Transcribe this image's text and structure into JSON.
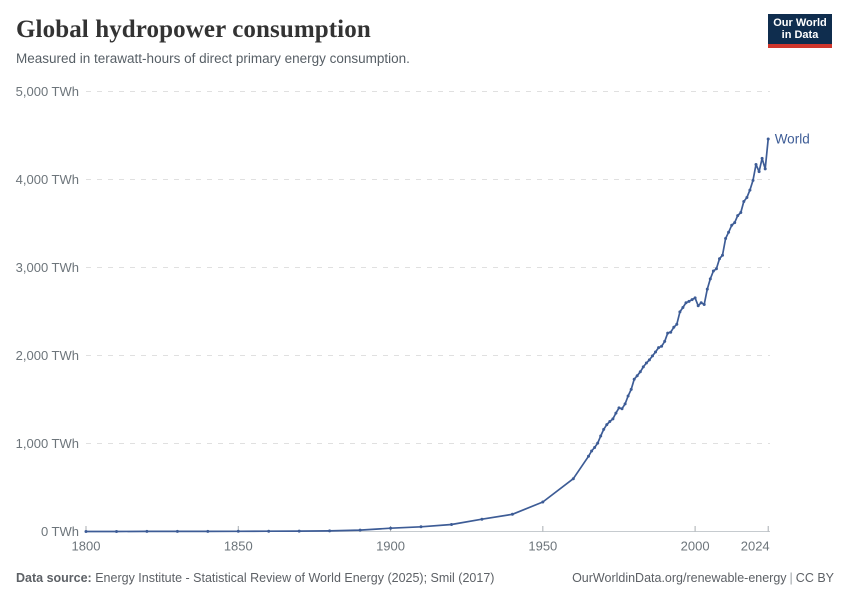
{
  "header": {
    "title": "Global hydropower consumption",
    "subtitle": "Measured in terawatt-hours of direct primary energy consumption."
  },
  "logo": {
    "line1": "Our World",
    "line2": "in Data",
    "bg_color": "#0f2d4e",
    "bar_color": "#d0362c"
  },
  "footer": {
    "source_label": "Data source:",
    "source_text": " Energy Institute - Statistical Review of World Energy (2025); Smil (2017)",
    "url_text": "OurWorldinData.org/renewable-energy",
    "separator": "|",
    "license_text": "CC BY"
  },
  "chart_data": {
    "type": "line",
    "title": "Global hydropower consumption",
    "unit": "TWh",
    "xlabel": "",
    "ylabel": "",
    "xlim": [
      1800,
      2024
    ],
    "ylim": [
      0,
      5000
    ],
    "x_ticks": [
      1800,
      1850,
      1900,
      1950,
      2000,
      2024
    ],
    "y_ticks": [
      0,
      1000,
      2000,
      3000,
      4000,
      5000
    ],
    "y_tick_suffix": " TWh",
    "grid": "horizontal-dashed",
    "legend_position": "end-of-line-label",
    "series": [
      {
        "name": "World",
        "color": "#3d5c96",
        "points": [
          [
            1800,
            0.3
          ],
          [
            1810,
            0.5
          ],
          [
            1820,
            0.8
          ],
          [
            1830,
            1.1
          ],
          [
            1840,
            1.5
          ],
          [
            1850,
            2
          ],
          [
            1860,
            3
          ],
          [
            1870,
            4.5
          ],
          [
            1880,
            7
          ],
          [
            1890,
            16
          ],
          [
            1900,
            38
          ],
          [
            1910,
            53
          ],
          [
            1920,
            80
          ],
          [
            1930,
            140
          ],
          [
            1940,
            195
          ],
          [
            1950,
            335
          ],
          [
            1960,
            600
          ],
          [
            1965,
            855
          ],
          [
            1966,
            915
          ],
          [
            1967,
            955
          ],
          [
            1968,
            1005
          ],
          [
            1969,
            1085
          ],
          [
            1970,
            1160
          ],
          [
            1971,
            1215
          ],
          [
            1972,
            1250
          ],
          [
            1973,
            1280
          ],
          [
            1974,
            1345
          ],
          [
            1975,
            1405
          ],
          [
            1976,
            1395
          ],
          [
            1977,
            1450
          ],
          [
            1978,
            1540
          ],
          [
            1979,
            1615
          ],
          [
            1980,
            1730
          ],
          [
            1981,
            1770
          ],
          [
            1982,
            1815
          ],
          [
            1983,
            1870
          ],
          [
            1984,
            1915
          ],
          [
            1985,
            1950
          ],
          [
            1986,
            1995
          ],
          [
            1987,
            2040
          ],
          [
            1988,
            2090
          ],
          [
            1989,
            2105
          ],
          [
            1990,
            2160
          ],
          [
            1991,
            2255
          ],
          [
            1992,
            2265
          ],
          [
            1993,
            2320
          ],
          [
            1994,
            2355
          ],
          [
            1995,
            2495
          ],
          [
            1996,
            2545
          ],
          [
            1997,
            2600
          ],
          [
            1998,
            2615
          ],
          [
            1999,
            2635
          ],
          [
            2000,
            2655
          ],
          [
            2001,
            2565
          ],
          [
            2002,
            2600
          ],
          [
            2003,
            2580
          ],
          [
            2004,
            2755
          ],
          [
            2005,
            2870
          ],
          [
            2006,
            2960
          ],
          [
            2007,
            2985
          ],
          [
            2008,
            3100
          ],
          [
            2009,
            3140
          ],
          [
            2010,
            3330
          ],
          [
            2011,
            3400
          ],
          [
            2012,
            3480
          ],
          [
            2013,
            3510
          ],
          [
            2014,
            3590
          ],
          [
            2015,
            3625
          ],
          [
            2016,
            3750
          ],
          [
            2017,
            3795
          ],
          [
            2018,
            3880
          ],
          [
            2019,
            3990
          ],
          [
            2020,
            4170
          ],
          [
            2021,
            4090
          ],
          [
            2022,
            4240
          ],
          [
            2023,
            4120
          ],
          [
            2024,
            4460
          ]
        ]
      }
    ]
  }
}
